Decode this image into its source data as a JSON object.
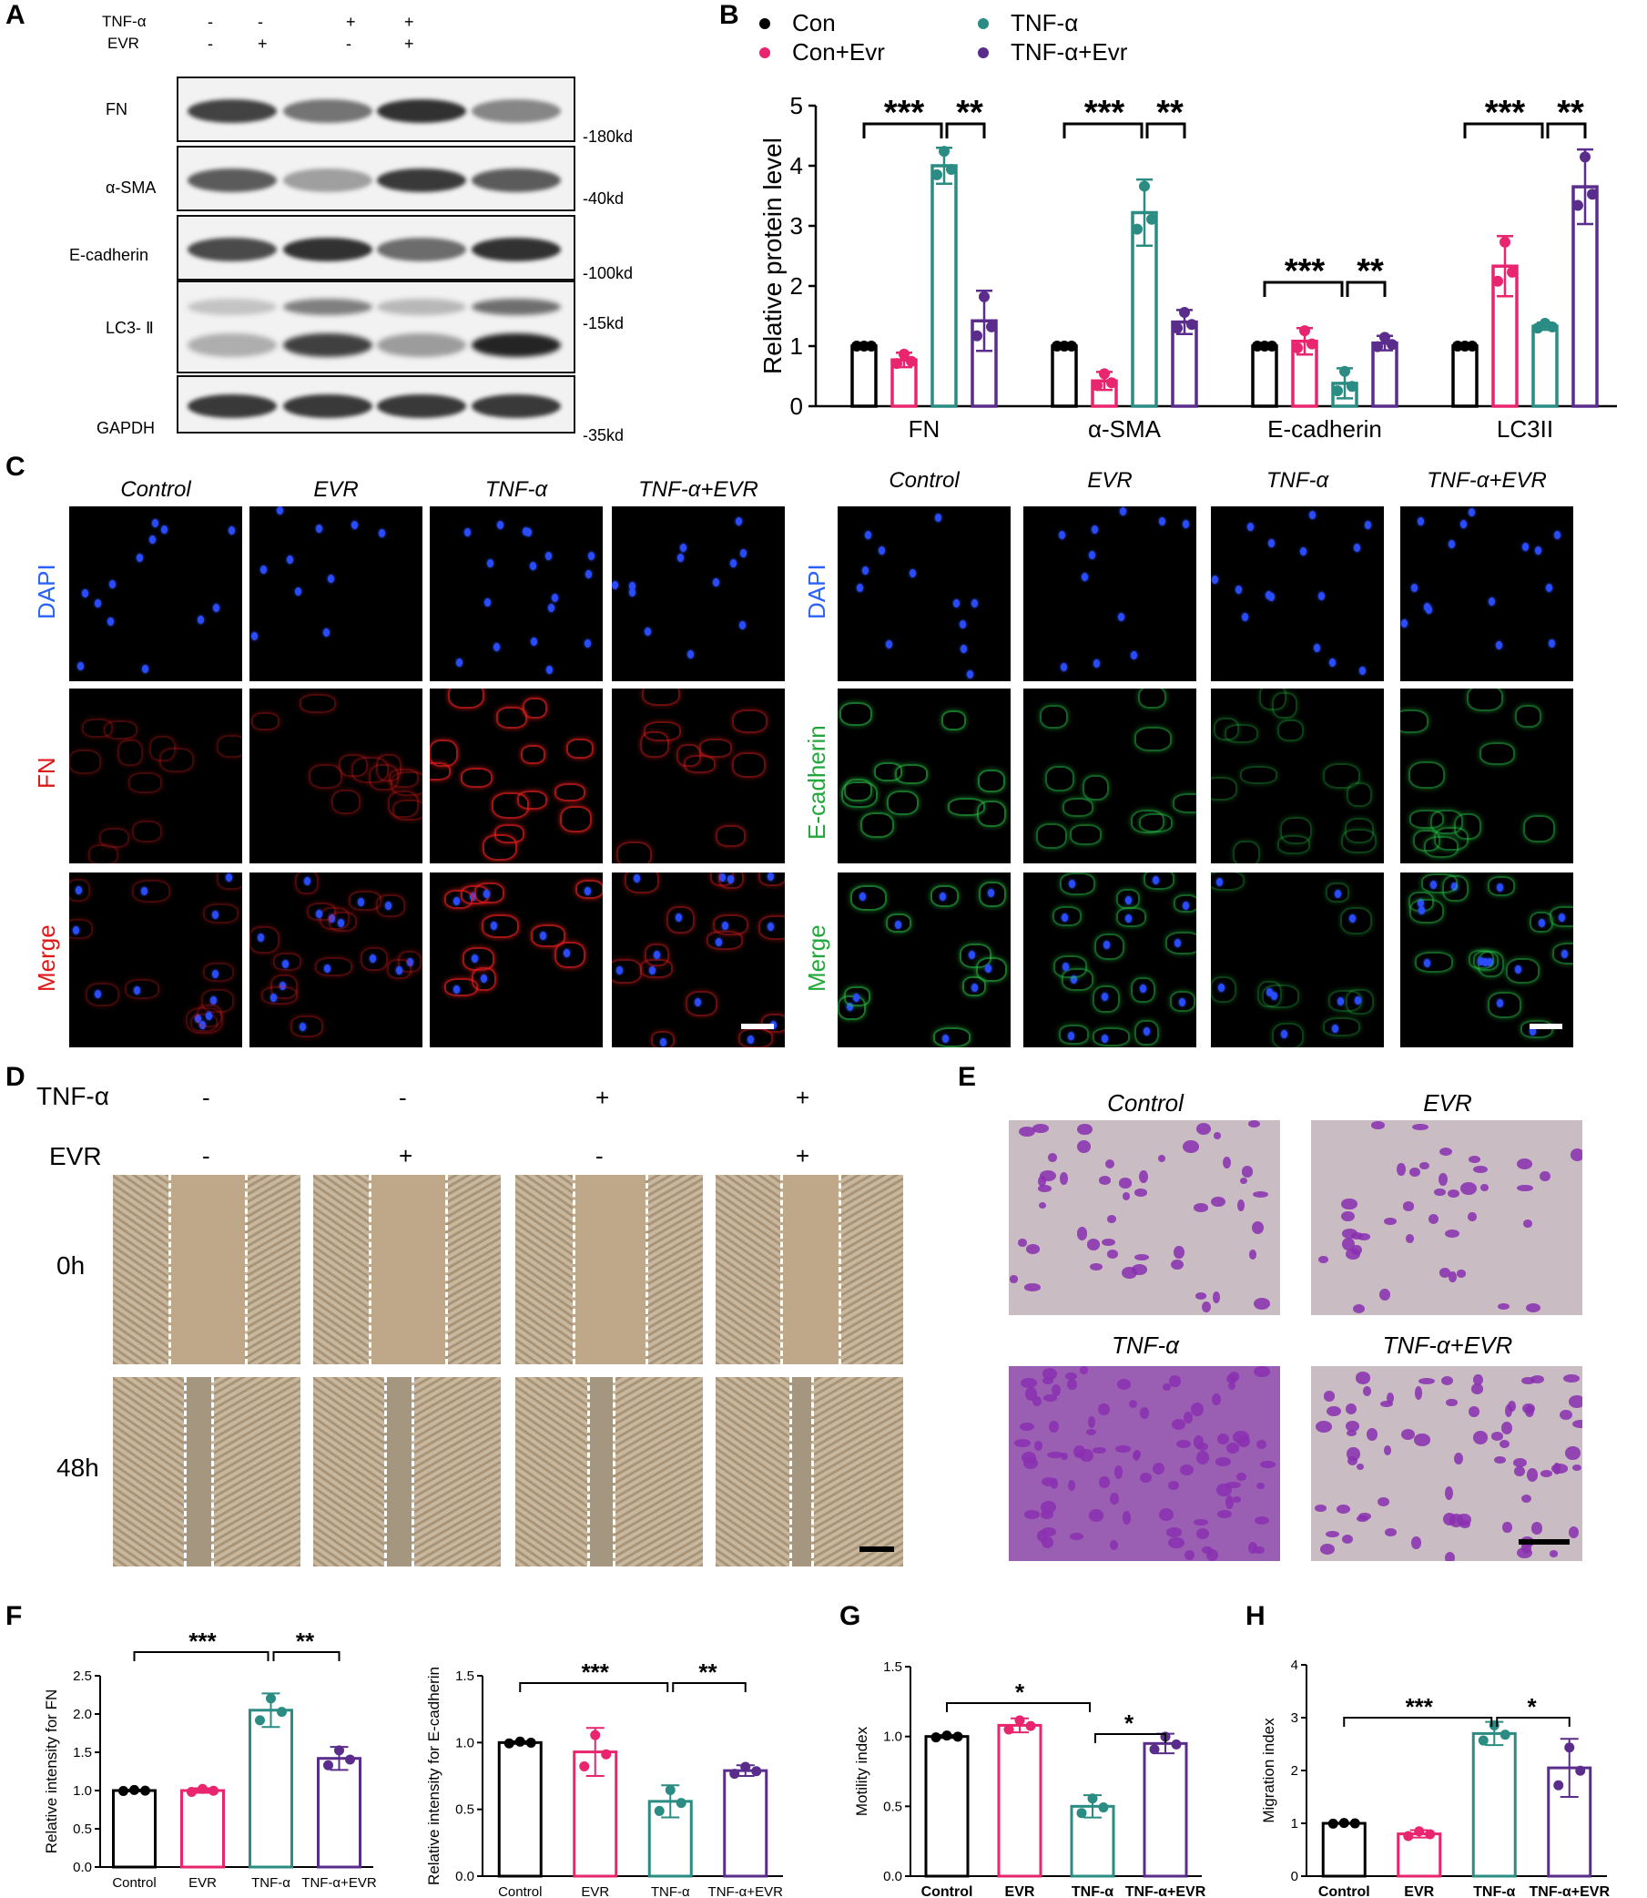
{
  "panel_letters": {
    "a": "A",
    "b": "B",
    "c": "C",
    "d": "D",
    "e": "E",
    "f": "F",
    "g": "G",
    "h": "H"
  },
  "western": {
    "treat_rows": [
      {
        "label": "TNF-α",
        "signs": [
          "-",
          "-",
          "+",
          "+"
        ]
      },
      {
        "label": "EVR",
        "signs": [
          "-",
          "+",
          "-",
          "+"
        ]
      }
    ],
    "blots": [
      {
        "name": "FN",
        "kd": "-180kd",
        "intensity": [
          0.85,
          0.55,
          0.95,
          0.45
        ]
      },
      {
        "name": "α-SMA",
        "kd": "-40kd",
        "intensity": [
          0.7,
          0.3,
          0.9,
          0.7
        ]
      },
      {
        "name": "E-cadherin",
        "kd": "-100kd",
        "intensity": [
          0.8,
          0.95,
          0.6,
          0.95
        ]
      },
      {
        "name": "LC3- Ⅱ",
        "kd": "-15kd",
        "intensity": [
          0.35,
          0.85,
          0.45,
          0.95
        ]
      },
      {
        "name": "GAPDH",
        "kd": "-35kd",
        "intensity": [
          0.9,
          0.9,
          0.9,
          0.9
        ]
      }
    ]
  },
  "colors": {
    "con": "#000000",
    "evr": "#e8256e",
    "tnf": "#2a8c82",
    "tnfevr": "#5a2d8c",
    "dapi": "#2a62ff",
    "fn": "#e01818",
    "ecad": "#22a83a"
  },
  "chart_data": [
    {
      "type": "bar",
      "panel": "B",
      "categories": [
        "FN",
        "α-SMA",
        "E-cadherin",
        "LC3II"
      ],
      "legend": [
        "Con",
        "Con+Evr",
        "TNF-α",
        "TNF-α+Evr"
      ],
      "ylabel": "Relative protein level",
      "ylim": [
        0,
        5
      ],
      "yticks": [
        "0",
        "1",
        "2",
        "3",
        "4",
        "5"
      ],
      "series": [
        {
          "name": "Con",
          "values": [
            1.0,
            1.0,
            1.0,
            1.0
          ],
          "err": [
            0,
            0,
            0,
            0
          ]
        },
        {
          "name": "Con+Evr",
          "values": [
            0.77,
            0.42,
            1.08,
            2.33
          ],
          "err": [
            0.12,
            0.15,
            0.22,
            0.5
          ]
        },
        {
          "name": "TNF-α",
          "values": [
            4.0,
            3.22,
            0.38,
            1.33
          ],
          "err": [
            0.3,
            0.55,
            0.25,
            0.06
          ]
        },
        {
          "name": "TNF-α+Evr",
          "values": [
            1.42,
            1.4,
            1.05,
            3.65
          ],
          "err": [
            0.5,
            0.2,
            0.12,
            0.62
          ]
        }
      ],
      "significance": [
        {
          "group": 0,
          "pairs": [
            "***",
            "**"
          ]
        },
        {
          "group": 1,
          "pairs": [
            "***",
            "**"
          ]
        },
        {
          "group": 2,
          "pairs": [
            "***",
            "**"
          ]
        },
        {
          "group": 3,
          "pairs": [
            "***",
            "**"
          ]
        }
      ]
    },
    {
      "type": "bar",
      "panel": "F1",
      "categories": [
        "Control",
        "EVR",
        "TNF-α",
        "TNF-α+EVR"
      ],
      "values": [
        1.0,
        1.0,
        2.05,
        1.42
      ],
      "err": [
        0.01,
        0.03,
        0.22,
        0.15
      ],
      "ylabel": "Relative intensity  for FN",
      "ylim": [
        0,
        2.5
      ],
      "yticks": [
        "0.0",
        "0.5",
        "1.0",
        "1.5",
        "2.0",
        "2.5"
      ],
      "sig": [
        "***",
        "**"
      ]
    },
    {
      "type": "bar",
      "panel": "F2",
      "categories": [
        "Control",
        "EVR",
        "TNF-α",
        "TNF-α+EVR"
      ],
      "values": [
        1.0,
        0.93,
        0.56,
        0.79
      ],
      "err": [
        0.01,
        0.18,
        0.12,
        0.04
      ],
      "ylabel": "Relative intensity  for E-cadherin",
      "ylim": [
        0,
        1.5
      ],
      "yticks": [
        "0.0",
        "0.5",
        "1.0",
        "1.5"
      ],
      "sig": [
        "***",
        "**"
      ]
    },
    {
      "type": "bar",
      "panel": "G",
      "categories": [
        "Control",
        "EVR",
        "TNF-α",
        "TNF-α+EVR"
      ],
      "values": [
        1.0,
        1.08,
        0.5,
        0.95
      ],
      "err": [
        0.01,
        0.05,
        0.08,
        0.07
      ],
      "ylabel": "Motility index",
      "ylim": [
        0,
        1.5
      ],
      "yticks": [
        "0.0",
        "0.5",
        "1.0",
        "1.5"
      ],
      "sig": [
        "*",
        "*"
      ]
    },
    {
      "type": "bar",
      "panel": "H",
      "categories": [
        "Control",
        "EVR",
        "TNF-α",
        "TNF-α+EVR"
      ],
      "values": [
        1.0,
        0.8,
        2.7,
        2.05
      ],
      "err": [
        0.01,
        0.07,
        0.22,
        0.55
      ],
      "ylabel": "Migration index",
      "ylim": [
        0,
        4
      ],
      "yticks": [
        "0",
        "1",
        "2",
        "3",
        "4"
      ],
      "sig": [
        "***",
        "*"
      ]
    }
  ],
  "ifpanel": {
    "groups": [
      "Control",
      "EVR",
      "TNF-α",
      "TNF-α+EVR"
    ],
    "left_rows": [
      "DAPI",
      "FN",
      "Merge"
    ],
    "right_rows": [
      "DAPI",
      "E-cadherin",
      "Merge"
    ]
  },
  "scratch": {
    "tnf_label": "TNF-α",
    "evr_label": "EVR",
    "tnf_signs": [
      "-",
      "-",
      "+",
      "+"
    ],
    "evr_signs": [
      "-",
      "+",
      "-",
      "+"
    ],
    "times": [
      "0h",
      "48h"
    ]
  },
  "transwell": {
    "groups": [
      "Control",
      "EVR",
      "TNF-α",
      "TNF-α+EVR"
    ]
  }
}
